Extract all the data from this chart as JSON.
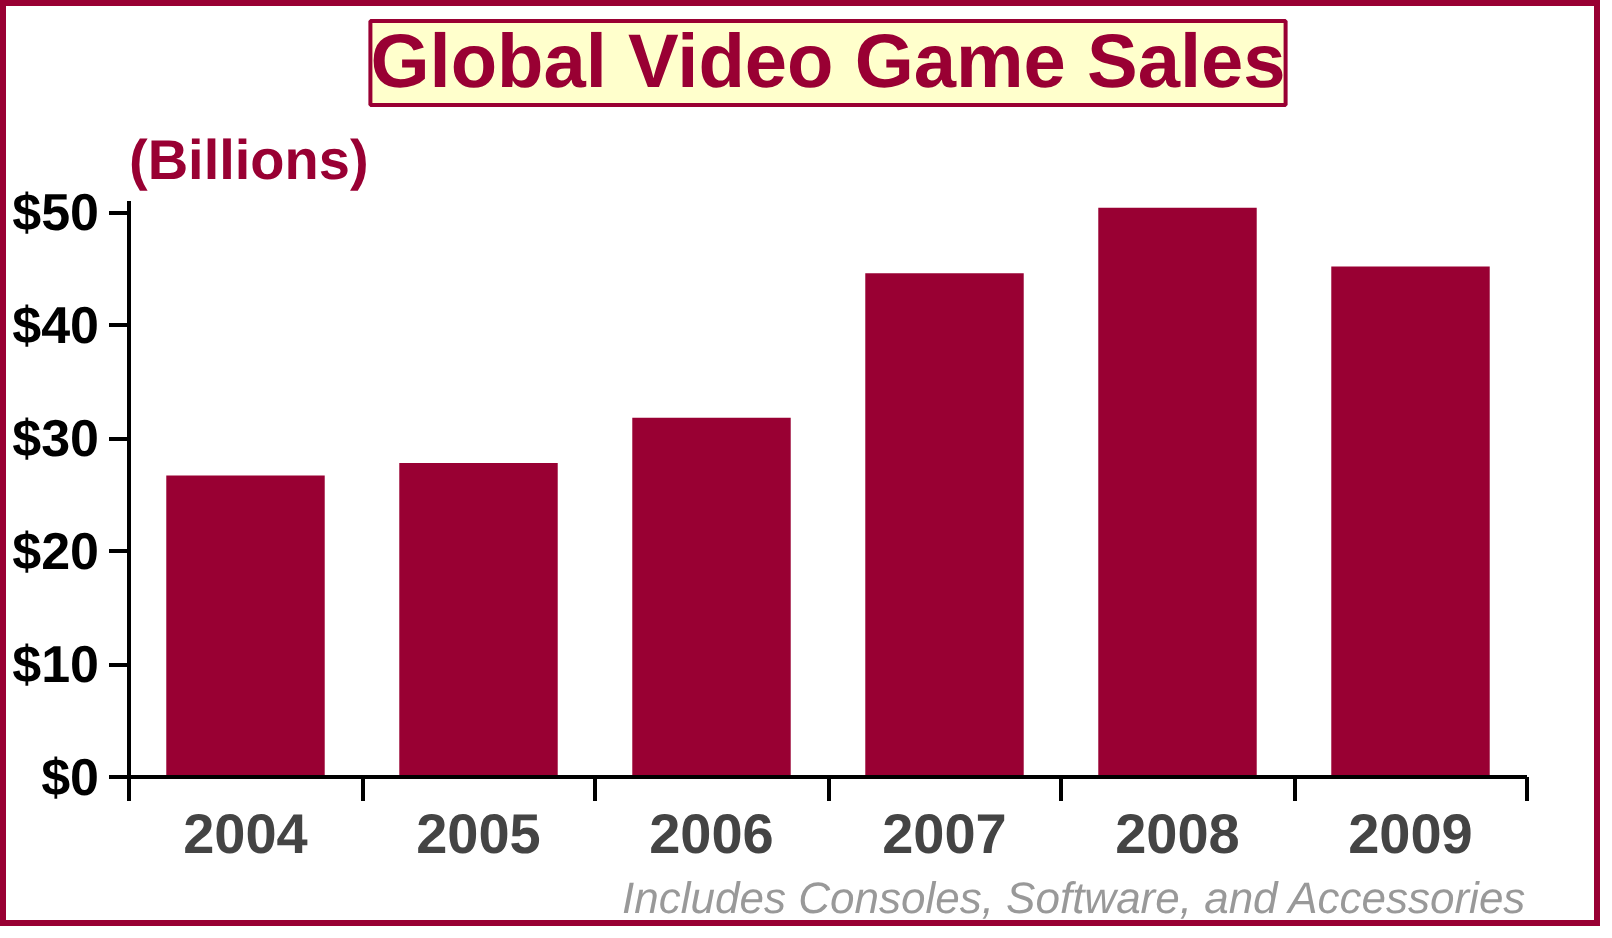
{
  "chart_data": {
    "type": "bar",
    "title": "Global Video Game Sales",
    "ylabel": "(Billions)",
    "categories": [
      "2004",
      "2005",
      "2006",
      "2007",
      "2008",
      "2009"
    ],
    "values": [
      26.7,
      27.8,
      31.8,
      44.6,
      50.4,
      45.2
    ],
    "color": "#990033",
    "ylim": [
      0,
      51
    ],
    "yticks": [
      {
        "value": 0,
        "label": "$0"
      },
      {
        "value": 10,
        "label": "$10"
      },
      {
        "value": 20,
        "label": "$20"
      },
      {
        "value": 30,
        "label": "$30"
      },
      {
        "value": 40,
        "label": "$40"
      },
      {
        "value": 50,
        "label": "$50"
      }
    ],
    "grid": false,
    "annotations": [
      "Includes Consoles, Software, and Accessories"
    ]
  }
}
